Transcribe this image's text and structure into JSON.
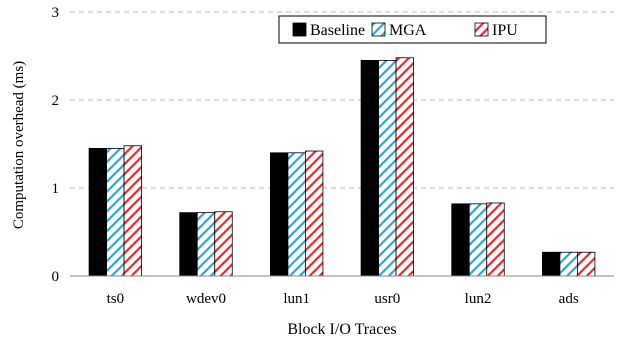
{
  "chart_data": {
    "type": "bar",
    "title": "",
    "xlabel": "Block I/O Traces",
    "ylabel": "Computation overhead (ms)",
    "ylim": [
      0,
      3
    ],
    "yticks": [
      0,
      1,
      2,
      3
    ],
    "grid": true,
    "legend_position": "top-right",
    "categories": [
      "ts0",
      "wdev0",
      "lun1",
      "usr0",
      "lun2",
      "ads"
    ],
    "series": [
      {
        "name": "Baseline",
        "values": [
          1.45,
          0.72,
          1.4,
          2.45,
          0.82,
          0.27
        ],
        "fill": "#000000",
        "pattern": "solid"
      },
      {
        "name": "MGA",
        "values": [
          1.45,
          0.72,
          1.4,
          2.45,
          0.82,
          0.27
        ],
        "fill": "#ffffff",
        "pattern": "hatch",
        "hatch_color": "#2aa6d6"
      },
      {
        "name": "IPU",
        "values": [
          1.48,
          0.73,
          1.42,
          2.48,
          0.83,
          0.27
        ],
        "fill": "#ffffff",
        "pattern": "hatch",
        "hatch_color": "#e8282b"
      }
    ]
  }
}
